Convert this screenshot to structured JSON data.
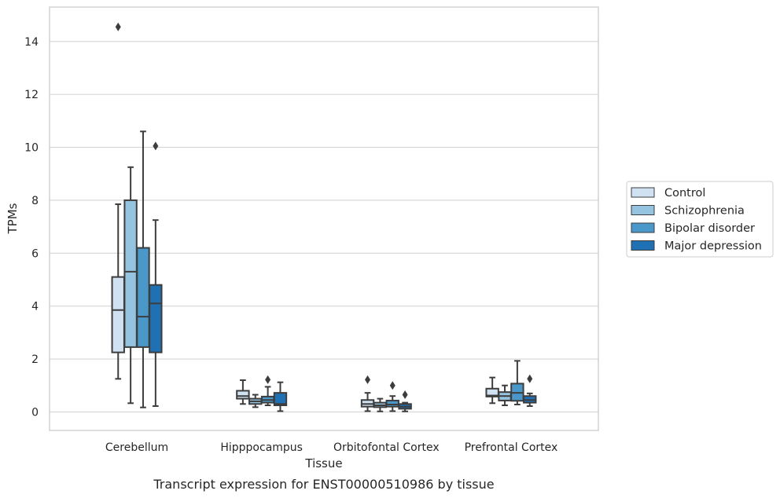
{
  "chart_data": {
    "type": "box",
    "xlabel": "Tissue",
    "ylabel": "TPMs",
    "caption": "Transcript expression for ENST00000510986 by tissue",
    "ylim": [
      -0.7,
      15.3
    ],
    "yticks": [
      0,
      2,
      4,
      6,
      8,
      10,
      12,
      14
    ],
    "ytick_labels": [
      "0",
      "2",
      "4",
      "6",
      "8",
      "10",
      "12",
      "14"
    ],
    "grid": "horizontal",
    "legend_position": "right",
    "categories": [
      "Cerebellum",
      "Hipppocampus",
      "Orbitofontal Cortex",
      "Prefrontal Cortex"
    ],
    "series": [
      {
        "name": "Control",
        "color": "#d0e1f2",
        "boxes": [
          {
            "whisker_low": 1.25,
            "q1": 2.25,
            "median": 3.85,
            "q3": 5.1,
            "whisker_high": 7.85,
            "outliers": [
              14.55
            ]
          },
          {
            "whisker_low": 0.3,
            "q1": 0.5,
            "median": 0.6,
            "q3": 0.8,
            "whisker_high": 1.2,
            "outliers": []
          },
          {
            "whisker_low": 0.03,
            "q1": 0.2,
            "median": 0.3,
            "q3": 0.45,
            "whisker_high": 0.72,
            "outliers": [
              1.22
            ]
          },
          {
            "whisker_low": 0.33,
            "q1": 0.58,
            "median": 0.62,
            "q3": 0.88,
            "whisker_high": 1.3,
            "outliers": []
          }
        ]
      },
      {
        "name": "Schizophrenia",
        "color": "#94c4df",
        "boxes": [
          {
            "whisker_low": 0.33,
            "q1": 2.45,
            "median": 5.3,
            "q3": 8.0,
            "whisker_high": 9.25,
            "outliers": []
          },
          {
            "whisker_low": 0.18,
            "q1": 0.3,
            "median": 0.4,
            "q3": 0.5,
            "whisker_high": 0.65,
            "outliers": []
          },
          {
            "whisker_low": 0.02,
            "q1": 0.18,
            "median": 0.25,
            "q3": 0.35,
            "whisker_high": 0.5,
            "outliers": []
          },
          {
            "whisker_low": 0.25,
            "q1": 0.43,
            "median": 0.6,
            "q3": 0.75,
            "whisker_high": 1.0,
            "outliers": []
          }
        ]
      },
      {
        "name": "Bipolar disorder",
        "color": "#4a98c9",
        "boxes": [
          {
            "whisker_low": 0.17,
            "q1": 2.45,
            "median": 3.6,
            "q3": 6.2,
            "whisker_high": 10.6,
            "outliers": []
          },
          {
            "whisker_low": 0.25,
            "q1": 0.35,
            "median": 0.45,
            "q3": 0.58,
            "whisker_high": 0.95,
            "outliers": [
              1.22
            ]
          },
          {
            "whisker_low": 0.03,
            "q1": 0.2,
            "median": 0.28,
            "q3": 0.43,
            "whisker_high": 0.6,
            "outliers": [
              1.0
            ]
          },
          {
            "whisker_low": 0.28,
            "q1": 0.42,
            "median": 0.72,
            "q3": 1.07,
            "whisker_high": 1.93,
            "outliers": []
          }
        ]
      },
      {
        "name": "Major depression",
        "color": "#2070b4",
        "boxes": [
          {
            "whisker_low": 0.22,
            "q1": 2.25,
            "median": 4.1,
            "q3": 4.8,
            "whisker_high": 7.25,
            "outliers": [
              10.05
            ]
          },
          {
            "whisker_low": 0.03,
            "q1": 0.25,
            "median": 0.3,
            "q3": 0.72,
            "whisker_high": 1.12,
            "outliers": []
          },
          {
            "whisker_low": 0.02,
            "q1": 0.12,
            "median": 0.2,
            "q3": 0.3,
            "whisker_high": 0.35,
            "outliers": [
              0.65
            ]
          },
          {
            "whisker_low": 0.22,
            "q1": 0.35,
            "median": 0.45,
            "q3": 0.6,
            "whisker_high": 0.7,
            "outliers": [
              1.25
            ]
          }
        ]
      }
    ]
  }
}
